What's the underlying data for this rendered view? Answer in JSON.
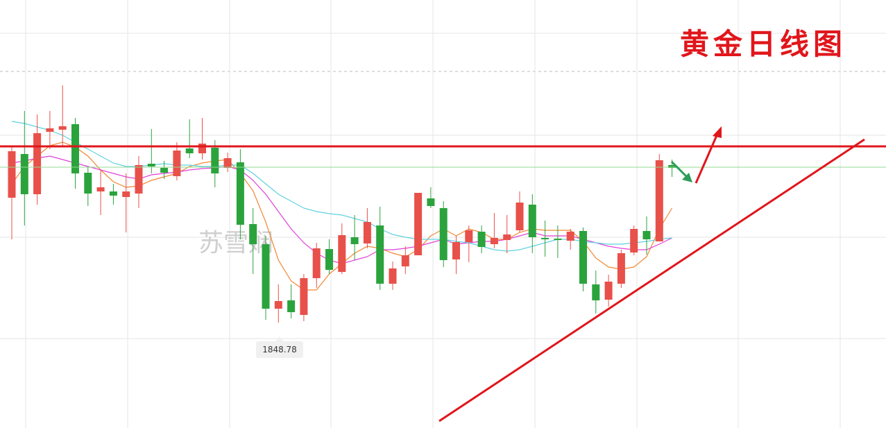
{
  "chart_data": {
    "type": "candlestick",
    "title": "黄金日线图",
    "watermark": "苏雪娴",
    "ylim": [
      1818.4,
      1941.8
    ],
    "up_color": "#e8504a",
    "down_color": "#2ba33d",
    "open": [
      1884.8,
      1897.4,
      1885.8,
      1903.8,
      1904.4,
      1906.0,
      1892.0,
      1886.6,
      1886.6,
      1885.0,
      1886.0,
      1894.6,
      1893.4,
      1891.0,
      1899.0,
      1897.6,
      1899.2,
      1893.4,
      1895.0,
      1877.2,
      1871.4,
      1852.8,
      1855.2,
      1851.0,
      1861.6,
      1870.0,
      1863.4,
      1873.4,
      1871.6,
      1876.8,
      1860.0,
      1865.0,
      1868.2,
      1884.6,
      1881.8,
      1867.0,
      1872.0,
      1875.0,
      1871.4,
      1872.6,
      1875.4,
      1882.8,
      1873.2,
      1873.0,
      1872.4,
      1875.2,
      1859.8,
      1855.4,
      1860.0,
      1869.0,
      1875.2,
      1872.2,
      1894.2
    ],
    "high": [
      1899.8,
      1909.8,
      1908.8,
      1909.8,
      1917.2,
      1907.8,
      1893.8,
      1892.8,
      1888.8,
      1891.8,
      1896.8,
      1904.6,
      1895.4,
      1900.8,
      1907.4,
      1907.8,
      1901.4,
      1897.8,
      1898.8,
      1881.8,
      1873.8,
      1859.8,
      1859.8,
      1862.8,
      1871.8,
      1872.8,
      1877.4,
      1879.8,
      1881.8,
      1882.2,
      1866.4,
      1870.8,
      1886.2,
      1887.8,
      1883.8,
      1873.8,
      1876.8,
      1876.8,
      1880.4,
      1879.8,
      1886.6,
      1885.8,
      1878.2,
      1876.8,
      1875.8,
      1876.2,
      1863.8,
      1862.6,
      1869.8,
      1876.8,
      1879.4,
      1897.4,
      1895.8
    ],
    "low": [
      1872.8,
      1876.8,
      1882.8,
      1898.8,
      1899.8,
      1887.4,
      1882.4,
      1879.8,
      1882.8,
      1874.8,
      1881.8,
      1891.8,
      1890.2,
      1889.8,
      1896.2,
      1895.8,
      1887.8,
      1892.2,
      1872.8,
      1862.8,
      1849.6,
      1848.78,
      1850.0,
      1849.2,
      1858.8,
      1862.8,
      1862.8,
      1866.8,
      1870.2,
      1858.2,
      1858.2,
      1862.8,
      1868.2,
      1881.8,
      1864.8,
      1862.8,
      1866.2,
      1868.8,
      1870.2,
      1868.8,
      1874.8,
      1868.8,
      1867.8,
      1867.4,
      1869.8,
      1857.8,
      1851.4,
      1853.4,
      1858.8,
      1868.2,
      1868.4,
      1872.8,
      1890.8
    ],
    "close": [
      1898.2,
      1885.8,
      1903.4,
      1904.8,
      1905.4,
      1891.8,
      1886.0,
      1887.8,
      1885.4,
      1886.6,
      1894.2,
      1893.8,
      1892.0,
      1898.4,
      1897.6,
      1900.4,
      1891.8,
      1896.2,
      1877.0,
      1871.4,
      1852.8,
      1855.0,
      1851.8,
      1861.6,
      1870.2,
      1864.0,
      1874.0,
      1871.4,
      1877.8,
      1860.0,
      1864.4,
      1868.2,
      1886.2,
      1882.4,
      1866.8,
      1872.0,
      1875.4,
      1870.6,
      1873.2,
      1874.2,
      1883.4,
      1873.4,
      1872.8,
      1872.6,
      1875.0,
      1860.0,
      1855.2,
      1860.6,
      1868.8,
      1875.8,
      1872.8,
      1895.6,
      1893.4
    ],
    "moving_averages": [
      {
        "color": "#f0862f",
        "values": [
          1888.8,
          1893.8,
          1896.8,
          1899.8,
          1900.8,
          1899.4,
          1896.8,
          1892.8,
          1889.4,
          1887.8,
          1888.2,
          1889.8,
          1890.8,
          1891.8,
          1893.8,
          1894.8,
          1895.4,
          1895.8,
          1891.8,
          1886.8,
          1877.8,
          1866.8,
          1860.8,
          1858.2,
          1858.2,
          1862.8,
          1865.8,
          1868.8,
          1870.8,
          1870.2,
          1868.8,
          1867.8,
          1869.8,
          1873.8,
          1875.8,
          1873.8,
          1875.8,
          1874.8,
          1872.8,
          1872.8,
          1874.8,
          1875.8,
          1875.4,
          1875.4,
          1875.4,
          1872.2,
          1867.4,
          1864.8,
          1864.2,
          1864.8,
          1867.8,
          1875.8,
          1881.8
        ]
      },
      {
        "color": "#e040d8",
        "values": [
          1894.8,
          1895.4,
          1896.2,
          1896.8,
          1895.8,
          1894.8,
          1893.8,
          1892.8,
          1891.8,
          1890.8,
          1890.2,
          1891.4,
          1891.8,
          1892.2,
          1892.8,
          1893.2,
          1893.4,
          1893.8,
          1892.8,
          1889.8,
          1885.8,
          1880.8,
          1875.8,
          1871.8,
          1868.8,
          1866.8,
          1865.8,
          1866.8,
          1867.8,
          1869.8,
          1869.8,
          1870.2,
          1870.8,
          1871.8,
          1872.8,
          1871.4,
          1871.8,
          1872.2,
          1872.2,
          1872.8,
          1873.8,
          1874.8,
          1873.8,
          1873.8,
          1873.8,
          1872.8,
          1871.8,
          1870.8,
          1870.2,
          1869.8,
          1869.8,
          1871.4,
          1873.2
        ]
      },
      {
        "color": "#5fd0e0",
        "values": [
          1906.8,
          1906.2,
          1905.2,
          1904.2,
          1902.8,
          1900.8,
          1898.8,
          1896.8,
          1894.8,
          1893.8,
          1893.8,
          1894.2,
          1894.6,
          1894.2,
          1894.2,
          1893.8,
          1893.8,
          1894.2,
          1894.2,
          1891.8,
          1888.8,
          1885.8,
          1883.8,
          1881.8,
          1880.8,
          1880.2,
          1879.8,
          1878.8,
          1877.8,
          1875.8,
          1874.2,
          1873.4,
          1872.8,
          1872.8,
          1872.8,
          1872.2,
          1871.8,
          1870.8,
          1869.8,
          1869.4,
          1869.8,
          1870.8,
          1871.8,
          1872.8,
          1872.8,
          1872.2,
          1871.8,
          1871.4,
          1871.4,
          1871.8,
          1872.2,
          1872.8,
          1873.2
        ]
      }
    ]
  }
}
